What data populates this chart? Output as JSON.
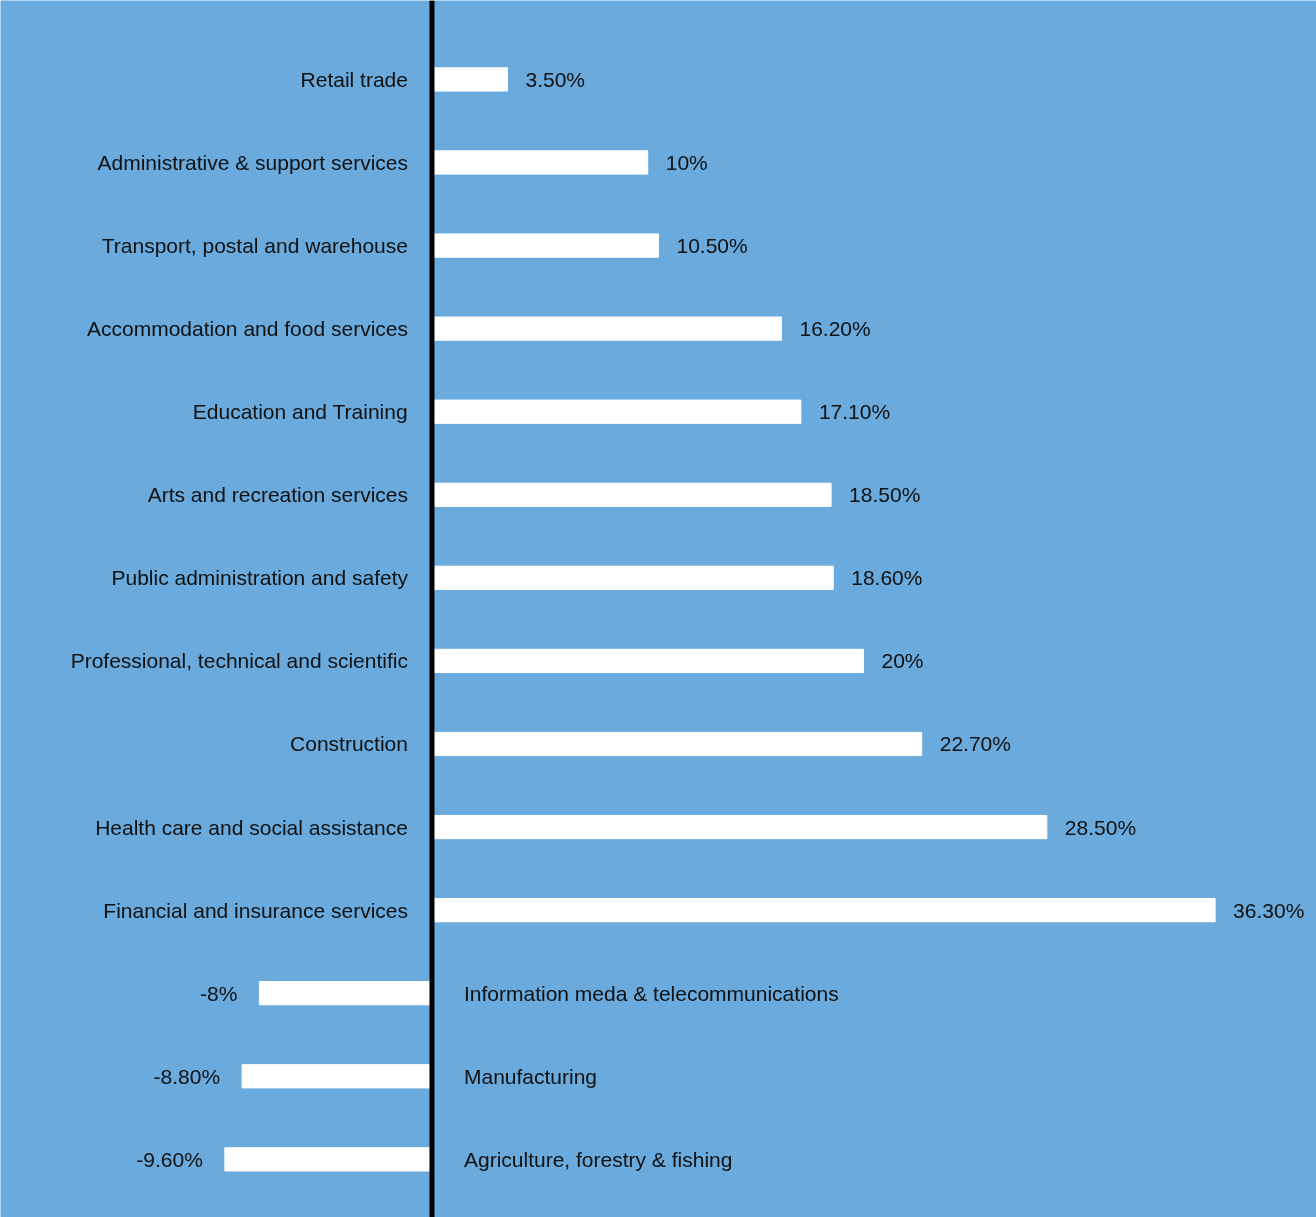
{
  "chart_data": {
    "type": "bar",
    "orientation": "horizontal",
    "categories": [
      "Retail trade",
      "Administrative & support services",
      "Transport, postal and warehouse",
      "Accommodation and food services",
      "Education and Training",
      "Arts and recreation services",
      "Public administration and safety",
      "Professional, technical and scientific",
      "Construction",
      "Health care and social assistance",
      "Financial and insurance services",
      "Information meda & telecommunications",
      "Manufacturing",
      "Agriculture, forestry & fishing"
    ],
    "values": [
      3.5,
      10,
      10.5,
      16.2,
      17.1,
      18.5,
      18.6,
      20,
      22.7,
      28.5,
      36.3,
      -8,
      -8.8,
      -9.6
    ],
    "value_labels": [
      "3.50%",
      "10%",
      "10.50%",
      "16.20%",
      "17.10%",
      "18.50%",
      "18.60%",
      "20%",
      "22.70%",
      "28.50%",
      "36.30%",
      "-8%",
      "-8.80%",
      "-9.60%"
    ],
    "color": "#ffffff",
    "xlim": [
      -20,
      41
    ],
    "tick_labels": false
  }
}
